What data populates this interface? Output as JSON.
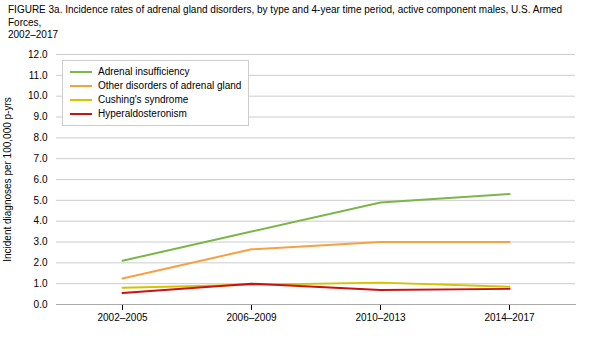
{
  "chart_data": {
    "type": "line",
    "title": "FIGURE 3a. Incidence rates of adrenal gland disorders, by type and 4-year time period, active component males, U.S. Armed Forces,\n2002–2017",
    "y_label": "Incident diagnoses per 100,000 p-yrs",
    "categories": [
      "2002–2005",
      "2006–2009",
      "2010–2013",
      "2014–2017"
    ],
    "series": [
      {
        "name": "Adrenal insufficiency",
        "color": "#7ab648",
        "values": [
          2.1,
          3.5,
          4.9,
          5.3
        ]
      },
      {
        "name": "Other disorders of adrenal gland",
        "color": "#f5a142",
        "values": [
          1.25,
          2.65,
          3.0,
          3.0
        ]
      },
      {
        "name": "Cushing's syndrome",
        "color": "#d4c400",
        "values": [
          0.8,
          0.95,
          1.05,
          0.85
        ]
      },
      {
        "name": "Hyperaldosteronism",
        "color": "#cc1111",
        "values": [
          0.55,
          1.0,
          0.7,
          0.75
        ]
      }
    ],
    "ylim": [
      0.0,
      12.0
    ],
    "yticks": [
      {
        "value": 0,
        "label": "0.0"
      },
      {
        "value": 1,
        "label": "1.0"
      },
      {
        "value": 2,
        "label": "2.0"
      },
      {
        "value": 3,
        "label": "3.0"
      },
      {
        "value": 4,
        "label": "4.0"
      },
      {
        "value": 5,
        "label": "5.0"
      },
      {
        "value": 6,
        "label": "6.0"
      },
      {
        "value": 7,
        "label": "7.0"
      },
      {
        "value": 8,
        "label": "8.0"
      },
      {
        "value": 9,
        "label": "9.0"
      },
      {
        "value": 10,
        "label": "10.0"
      },
      {
        "value": 11,
        "label": "11.0"
      },
      {
        "value": 12,
        "label": "12.0"
      }
    ],
    "grid": true,
    "legend": "upper left"
  }
}
